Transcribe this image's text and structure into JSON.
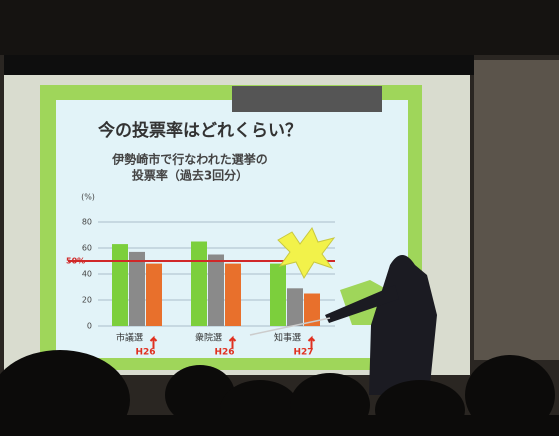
{
  "chart_data": {
    "type": "bar",
    "title": "今の投票率はどれくらい？",
    "subtitle": [
      "伊勢崎市で行なわれた選挙の",
      "投票率（過去3回分）"
    ],
    "ylabel": "(%)",
    "categories": [
      "市議選",
      "衆院選",
      "知事選"
    ],
    "annotations": [
      "H26",
      "H26",
      "H27"
    ],
    "series": [
      {
        "color": "#7ccf3c",
        "values": [
          63,
          65,
          48
        ]
      },
      {
        "color": "#8a8a8a",
        "values": [
          57,
          55,
          29
        ]
      },
      {
        "color": "#e8702c",
        "values": [
          48,
          48,
          25
        ]
      }
    ],
    "reference_line": {
      "value": 50,
      "label": "50%"
    },
    "ylim": [
      0,
      80
    ],
    "yticks": [
      0,
      20,
      40,
      60,
      80
    ],
    "grid": true
  }
}
